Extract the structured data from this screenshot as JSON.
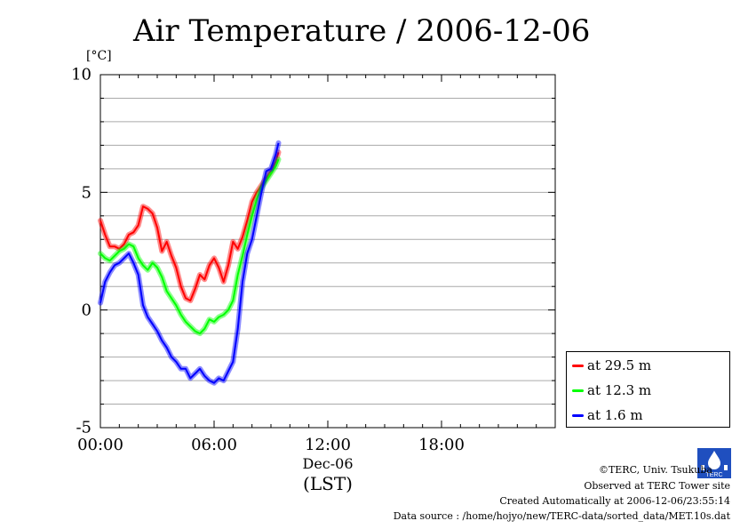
{
  "header": {
    "title": "Air Temperature / 2006-12-06",
    "unit_label": "[°C]"
  },
  "axis": {
    "x_date": "Dec-06",
    "x_unit": "(LST)",
    "x_ticks": [
      "00:00",
      "06:00",
      "12:00",
      "18:00"
    ],
    "y_ticks": [
      "10",
      "5",
      "0",
      "-5"
    ]
  },
  "legend": {
    "items": [
      {
        "label": "at 29.5 m",
        "color": "#ff0000"
      },
      {
        "label": "at 12.3 m",
        "color": "#00ff00"
      },
      {
        "label": "at 1.6 m",
        "color": "#0000ff"
      }
    ]
  },
  "footer": {
    "copyright": "©TERC, Univ. Tsukuba",
    "observed": "Observed at TERC Tower site",
    "created": "Created Automatically at 2006-12-06/23:55:14",
    "source": "Data source : /home/hojyo/new/TERC-data/sorted_data/MET.10s.dat",
    "logo_text": "TERC"
  },
  "chart_data": {
    "type": "line",
    "title": "Air Temperature / 2006-12-06",
    "xlabel": "(LST)",
    "ylabel": "[°C]",
    "xlim_hours": [
      0,
      24
    ],
    "ylim": [
      -5,
      10
    ],
    "y_ticks": [
      10,
      5,
      0,
      -5
    ],
    "x_tick_labels": [
      "00:00",
      "06:00",
      "12:00",
      "18:00"
    ],
    "grid": "horizontal lines every 1 °C",
    "legend_position": "right, outside plot",
    "series": [
      {
        "name": "at 29.5 m",
        "color": "#ff0000",
        "x_hours": [
          0,
          0.25,
          0.5,
          0.75,
          1.0,
          1.25,
          1.5,
          1.75,
          2.0,
          2.25,
          2.5,
          2.75,
          3.0,
          3.25,
          3.5,
          3.75,
          4.0,
          4.25,
          4.5,
          4.75,
          5.0,
          5.25,
          5.5,
          5.75,
          6.0,
          6.25,
          6.5,
          6.75,
          7.0,
          7.25,
          7.5,
          7.75,
          8.0,
          8.25,
          8.5,
          8.75,
          9.0,
          9.25,
          9.4
        ],
        "values": [
          3.8,
          3.2,
          2.7,
          2.7,
          2.6,
          2.8,
          3.2,
          3.3,
          3.6,
          4.4,
          4.3,
          4.1,
          3.5,
          2.5,
          2.9,
          2.3,
          1.8,
          1.0,
          0.5,
          0.4,
          0.9,
          1.5,
          1.3,
          1.9,
          2.2,
          1.8,
          1.2,
          1.9,
          2.9,
          2.6,
          3.1,
          3.8,
          4.6,
          5.0,
          5.3,
          5.6,
          5.9,
          6.3,
          6.7
        ]
      },
      {
        "name": "at 12.3 m",
        "color": "#00ff00",
        "x_hours": [
          0,
          0.25,
          0.5,
          0.75,
          1.0,
          1.25,
          1.5,
          1.75,
          2.0,
          2.25,
          2.5,
          2.75,
          3.0,
          3.25,
          3.5,
          3.75,
          4.0,
          4.25,
          4.5,
          4.75,
          5.0,
          5.25,
          5.5,
          5.75,
          6.0,
          6.25,
          6.5,
          6.75,
          7.0,
          7.25,
          7.5,
          7.75,
          8.0,
          8.25,
          8.5,
          8.75,
          9.0,
          9.25,
          9.4
        ],
        "values": [
          2.4,
          2.2,
          2.1,
          2.3,
          2.5,
          2.6,
          2.8,
          2.7,
          2.2,
          1.9,
          1.7,
          2.0,
          1.8,
          1.4,
          0.8,
          0.5,
          0.2,
          -0.2,
          -0.5,
          -0.7,
          -0.9,
          -1.0,
          -0.8,
          -0.4,
          -0.5,
          -0.3,
          -0.2,
          0.0,
          0.4,
          1.5,
          2.3,
          3.2,
          4.0,
          4.7,
          5.2,
          5.5,
          5.8,
          6.1,
          6.4
        ]
      },
      {
        "name": "at 1.6 m",
        "color": "#0000ff",
        "x_hours": [
          0,
          0.25,
          0.5,
          0.75,
          1.0,
          1.25,
          1.5,
          1.75,
          2.0,
          2.25,
          2.5,
          2.75,
          3.0,
          3.25,
          3.5,
          3.75,
          4.0,
          4.25,
          4.5,
          4.75,
          5.0,
          5.25,
          5.5,
          5.75,
          6.0,
          6.25,
          6.5,
          6.75,
          7.0,
          7.25,
          7.5,
          7.75,
          8.0,
          8.25,
          8.5,
          8.75,
          9.0,
          9.25,
          9.4
        ],
        "values": [
          0.3,
          1.2,
          1.6,
          1.9,
          2.0,
          2.2,
          2.4,
          2.0,
          1.5,
          0.2,
          -0.3,
          -0.6,
          -0.9,
          -1.3,
          -1.6,
          -2.0,
          -2.2,
          -2.5,
          -2.5,
          -2.9,
          -2.7,
          -2.5,
          -2.8,
          -3.0,
          -3.1,
          -2.9,
          -3.0,
          -2.6,
          -2.2,
          -0.8,
          1.2,
          2.4,
          3.0,
          4.0,
          5.0,
          5.9,
          6.0,
          6.6,
          7.1
        ]
      }
    ]
  }
}
